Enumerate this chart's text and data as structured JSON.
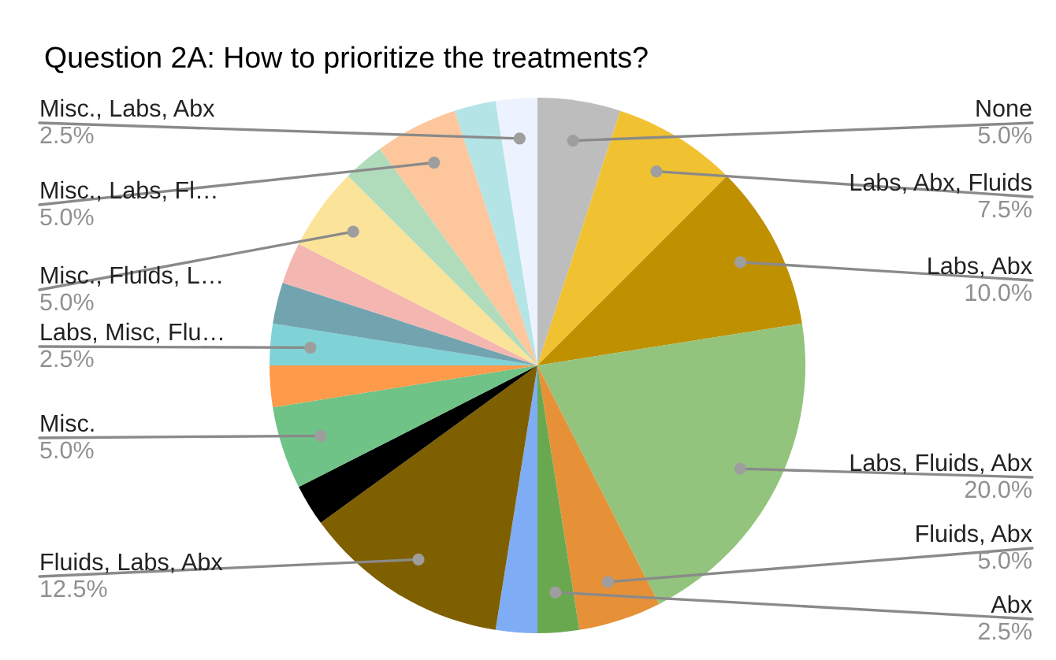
{
  "chart_data": {
    "type": "pie",
    "title": "Question 2A: How to prioritize the treatments?",
    "categories": [
      "None",
      "Labs, Abx, Fluids",
      "Labs, Abx",
      "Labs, Fluids, Abx",
      "Fluids, Abx",
      "Abx",
      null,
      "Fluids, Labs, Abx",
      null,
      "Misc.",
      null,
      "Labs, Misc, Flu…",
      null,
      null,
      "Misc., Fluids, L…",
      null,
      "Misc., Labs, Fl…",
      null,
      "Misc., Labs, Abx"
    ],
    "values": [
      5.0,
      7.5,
      10.0,
      20.0,
      5.0,
      2.5,
      2.5,
      12.5,
      2.5,
      5.0,
      2.5,
      2.5,
      2.5,
      2.5,
      5.0,
      2.5,
      5.0,
      2.5,
      2.5
    ],
    "value_labels": [
      "5.0%",
      "7.5%",
      "10.0%",
      "20.0%",
      "5.0%",
      "2.5%",
      null,
      "12.5%",
      null,
      "5.0%",
      null,
      "2.5%",
      null,
      null,
      "5.0%",
      null,
      "5.0%",
      null,
      "2.5%"
    ],
    "colors": [
      "#bdbdbd",
      "#f0c232",
      "#bf9000",
      "#93c47d",
      "#e69138",
      "#6aa84f",
      "#7fadf5",
      "#7f6000",
      "#000000",
      "#6fc386",
      "#ff9a4a",
      "#7fd2d6",
      "#72a4b0",
      "#f4b6b0",
      "#fce39a",
      "#b0dcbc",
      "#fdc69c",
      "#b4e4e6",
      "#ecf3fe"
    ]
  }
}
